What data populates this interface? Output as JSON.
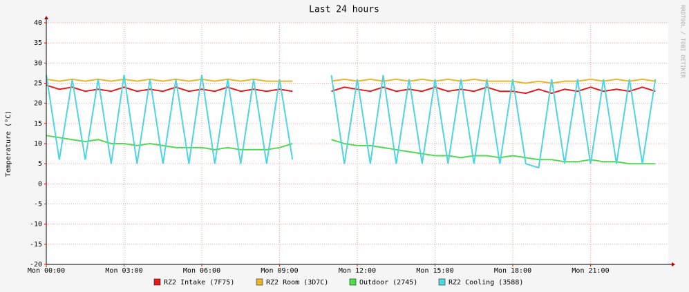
{
  "chart_data": {
    "type": "line",
    "title": "Last 24 hours",
    "y_label": "Temperature (°C)",
    "watermark": "RRDTOOL / TOBI OETIKER",
    "x": [
      0,
      0.5,
      1,
      1.5,
      2,
      2.5,
      3,
      3.5,
      4,
      4.5,
      5,
      5.5,
      6,
      6.5,
      7,
      7.5,
      8,
      8.5,
      9,
      9.5,
      10,
      10.5,
      11,
      11.5,
      12,
      12.5,
      13,
      13.5,
      14,
      14.5,
      15,
      15.5,
      16,
      16.5,
      17,
      17.5,
      18,
      18.5,
      19,
      19.5,
      20,
      20.5,
      21,
      21.5,
      22,
      22.5,
      23,
      23.5
    ],
    "xlim": [
      0,
      24
    ],
    "xticks": [
      {
        "value": 0,
        "label": "Mon 00:00"
      },
      {
        "value": 3,
        "label": "Mon 03:00"
      },
      {
        "value": 6,
        "label": "Mon 06:00"
      },
      {
        "value": 9,
        "label": "Mon 09:00"
      },
      {
        "value": 12,
        "label": "Mon 12:00"
      },
      {
        "value": 15,
        "label": "Mon 15:00"
      },
      {
        "value": 18,
        "label": "Mon 18:00"
      },
      {
        "value": 21,
        "label": "Mon 21:00"
      }
    ],
    "ylim": [
      -20,
      40
    ],
    "yticks": [
      -20,
      -15,
      -10,
      -5,
      0,
      5,
      10,
      15,
      20,
      25,
      30,
      35,
      40
    ],
    "grid": true,
    "series": [
      {
        "name": "RZ2 Intake (7F75)",
        "color": "#e31a1c",
        "values": [
          24.5,
          23.5,
          24,
          23,
          23.5,
          23,
          24,
          23,
          23.5,
          23,
          24,
          23,
          23.5,
          23,
          24,
          23,
          23.5,
          23,
          23.5,
          23,
          null,
          null,
          23,
          24,
          23.5,
          23,
          24,
          23,
          23.5,
          23,
          24,
          23,
          23.5,
          23,
          24,
          23,
          23,
          22.5,
          23.5,
          22.5,
          23.5,
          23,
          24,
          23,
          23.5,
          23,
          24,
          23
        ]
      },
      {
        "name": "RZ2 Room (3D7C)",
        "color": "#e8b62a",
        "values": [
          26,
          25.5,
          26,
          25.5,
          26,
          25.5,
          26,
          25.5,
          26,
          25.5,
          26,
          25.5,
          26,
          25.5,
          26,
          25.5,
          26,
          25.5,
          25.5,
          25.5,
          null,
          null,
          25.5,
          26,
          25.5,
          26,
          25.5,
          26,
          25.5,
          26,
          25.5,
          26,
          25.5,
          26,
          25.5,
          25.5,
          25.5,
          25,
          25.5,
          25,
          25.5,
          25.5,
          26,
          25.5,
          26,
          25.5,
          26,
          25.5
        ]
      },
      {
        "name": "Outdoor (2745)",
        "color": "#52d952",
        "values": [
          12,
          11.5,
          11,
          10.5,
          11,
          10,
          10,
          9.5,
          10,
          9.5,
          9,
          9,
          9,
          8.5,
          9,
          8.5,
          8.5,
          8.5,
          9,
          10,
          null,
          null,
          11,
          10,
          9.5,
          9.5,
          9,
          8.5,
          8,
          7.5,
          7,
          7,
          6.5,
          7,
          7,
          6.5,
          7,
          6.5,
          6,
          6,
          5.5,
          5.5,
          6,
          5.5,
          5.5,
          5,
          5,
          5
        ]
      },
      {
        "name": "RZ2 Cooling (3588)",
        "color": "#4dd5e0",
        "values": [
          27,
          6,
          26,
          6,
          26,
          5,
          27,
          5,
          26,
          5,
          26,
          5,
          27,
          5,
          26,
          5,
          26,
          5,
          26,
          6,
          null,
          null,
          27,
          5,
          26,
          5,
          27,
          5,
          26,
          5,
          26,
          5,
          26,
          5,
          26,
          5,
          26,
          5,
          4,
          26,
          5,
          26,
          5,
          26,
          5,
          26,
          5,
          26
        ]
      }
    ]
  }
}
